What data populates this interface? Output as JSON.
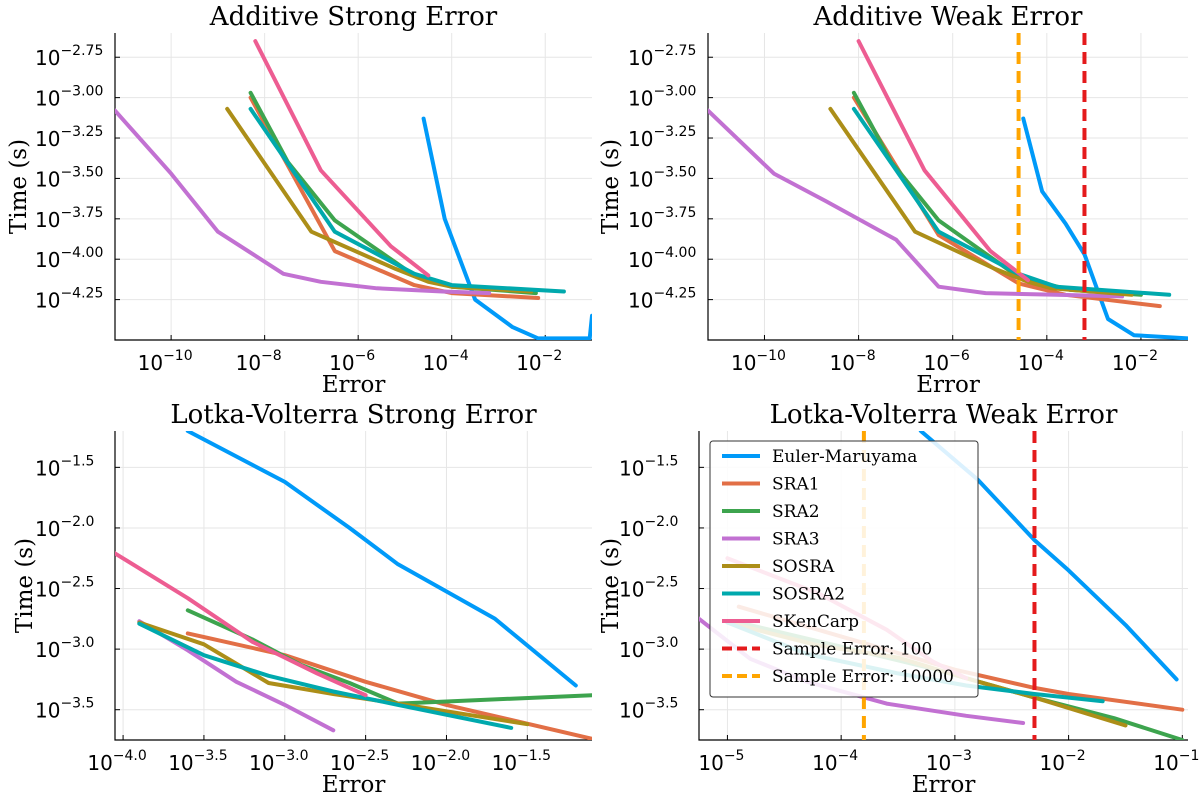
{
  "colors": {
    "Euler-Maruyama": "#009AF9",
    "SRA1": "#E26F46",
    "SRA2": "#3DA44E",
    "SRA3": "#C271D2",
    "SOSRA": "#AC8E18",
    "SOSRA2": "#00A9AD",
    "SKenCarp": "#ED5D92",
    "Sample Error: 100": "#E41A1C",
    "Sample Error: 10000": "#FFA500"
  },
  "legend": {
    "position": "top-left of bottom-right panel",
    "entries": [
      {
        "label": "Euler-Maruyama",
        "style": "solid"
      },
      {
        "label": "SRA1",
        "style": "solid"
      },
      {
        "label": "SRA2",
        "style": "solid"
      },
      {
        "label": "SRA3",
        "style": "solid"
      },
      {
        "label": "SOSRA",
        "style": "solid"
      },
      {
        "label": "SOSRA2",
        "style": "solid"
      },
      {
        "label": "SKenCarp",
        "style": "solid"
      },
      {
        "label": "Sample Error: 100",
        "style": "dashed"
      },
      {
        "label": "Sample Error: 10000",
        "style": "dashed"
      }
    ]
  },
  "chart_data": [
    {
      "type": "line",
      "title": "Additive Strong Error",
      "xlabel": "Error",
      "ylabel": "Time (s)",
      "xscale": "log10",
      "yscale": "log10",
      "xlim": [
        -11.2,
        -1
      ],
      "ylim": [
        -4.5,
        -2.6
      ],
      "xticks": [
        -10,
        -8,
        -6,
        -4,
        -2
      ],
      "xtick_labels": [
        "10",
        "10",
        "10",
        "10",
        "10"
      ],
      "xtick_exponents": [
        "−10",
        "−8",
        "−6",
        "−4",
        "−2"
      ],
      "yticks": [
        -2.75,
        -3.0,
        -3.25,
        -3.5,
        -3.75,
        -4.0,
        -4.25
      ],
      "ytick_labels": [
        "10",
        "10",
        "10",
        "10",
        "10",
        "10",
        "10"
      ],
      "ytick_exponents": [
        "−2.75",
        "−3.00",
        "−3.25",
        "−3.50",
        "−3.75",
        "−4.00",
        "−4.25"
      ],
      "series": [
        {
          "name": "Euler-Maruyama",
          "x": [
            -4.6,
            -4.15,
            -3.5,
            -2.7,
            -2.15,
            -1.05,
            -1.0
          ],
          "y": [
            -3.13,
            -3.75,
            -4.25,
            -4.42,
            -4.49,
            -4.49,
            -4.35
          ]
        },
        {
          "name": "SRA1",
          "x": [
            -8.3,
            -6.5,
            -4.8,
            -4.0,
            -2.15
          ],
          "y": [
            -3.0,
            -3.95,
            -4.16,
            -4.21,
            -4.24
          ]
        },
        {
          "name": "SRA2",
          "x": [
            -8.3,
            -7.5,
            -6.5,
            -4.8,
            -4.0,
            -2.2
          ],
          "y": [
            -2.97,
            -3.4,
            -3.76,
            -4.1,
            -4.17,
            -4.21
          ]
        },
        {
          "name": "SRA3",
          "x": [
            -11.2,
            -10.0,
            -9.0,
            -7.6,
            -6.8,
            -5.6,
            -4.2,
            -3.2
          ],
          "y": [
            -3.08,
            -3.47,
            -3.83,
            -4.09,
            -4.14,
            -4.18,
            -4.2,
            -4.21
          ]
        },
        {
          "name": "SOSRA",
          "x": [
            -8.8,
            -7.0,
            -5.2,
            -4.5,
            -4.0,
            -2.3
          ],
          "y": [
            -3.07,
            -3.83,
            -4.06,
            -4.14,
            -4.17,
            -4.2
          ]
        },
        {
          "name": "SOSRA2",
          "x": [
            -8.3,
            -6.5,
            -4.8,
            -4.0,
            -1.6
          ],
          "y": [
            -3.07,
            -3.83,
            -4.09,
            -4.16,
            -4.2
          ]
        },
        {
          "name": "SKenCarp",
          "x": [
            -8.2,
            -6.8,
            -5.3,
            -4.5
          ],
          "y": [
            -2.65,
            -3.45,
            -3.92,
            -4.1
          ]
        }
      ]
    },
    {
      "type": "line",
      "title": "Additive Weak Error",
      "xlabel": "Error",
      "ylabel": "Time (s)",
      "xscale": "log10",
      "yscale": "log10",
      "xlim": [
        -11.2,
        -1
      ],
      "ylim": [
        -4.5,
        -2.6
      ],
      "xticks": [
        -10,
        -8,
        -6,
        -4,
        -2
      ],
      "xtick_labels": [
        "10",
        "10",
        "10",
        "10",
        "10"
      ],
      "xtick_exponents": [
        "−10",
        "−8",
        "−6",
        "−4",
        "−2"
      ],
      "yticks": [
        -2.75,
        -3.0,
        -3.25,
        -3.5,
        -3.75,
        -4.0,
        -4.25
      ],
      "ytick_labels": [
        "10",
        "10",
        "10",
        "10",
        "10",
        "10",
        "10"
      ],
      "ytick_exponents": [
        "−2.75",
        "−3.00",
        "−3.25",
        "−3.50",
        "−3.75",
        "−4.00",
        "−4.25"
      ],
      "vlines": [
        {
          "name": "Sample Error: 10000",
          "x": -4.6
        },
        {
          "name": "Sample Error: 100",
          "x": -3.2
        }
      ],
      "series": [
        {
          "name": "Euler-Maruyama",
          "x": [
            -4.5,
            -4.1,
            -3.6,
            -3.2,
            -2.7,
            -2.15,
            -1.0
          ],
          "y": [
            -3.13,
            -3.58,
            -3.78,
            -3.97,
            -4.37,
            -4.47,
            -4.49
          ]
        },
        {
          "name": "SRA1",
          "x": [
            -8.1,
            -6.3,
            -4.6,
            -3.6,
            -1.6
          ],
          "y": [
            -3.0,
            -3.85,
            -4.15,
            -4.22,
            -4.29
          ]
        },
        {
          "name": "SRA2",
          "x": [
            -8.1,
            -7.3,
            -6.3,
            -4.6,
            -3.5,
            -2.0
          ],
          "y": [
            -2.97,
            -3.4,
            -3.76,
            -4.11,
            -4.19,
            -4.22
          ]
        },
        {
          "name": "SRA3",
          "x": [
            -11.2,
            -9.8,
            -8.7,
            -7.2,
            -6.3,
            -5.3,
            -3.8,
            -2.4
          ],
          "y": [
            -3.08,
            -3.47,
            -3.64,
            -3.88,
            -4.17,
            -4.21,
            -4.22,
            -4.23
          ]
        },
        {
          "name": "SOSRA",
          "x": [
            -8.6,
            -6.8,
            -5.1,
            -4.4,
            -3.9,
            -2.2
          ],
          "y": [
            -3.07,
            -3.83,
            -4.06,
            -4.14,
            -4.18,
            -4.22
          ]
        },
        {
          "name": "SOSRA2",
          "x": [
            -8.1,
            -6.3,
            -4.6,
            -3.8,
            -1.4
          ],
          "y": [
            -3.07,
            -3.83,
            -4.09,
            -4.17,
            -4.22
          ]
        },
        {
          "name": "SKenCarp",
          "x": [
            -8.0,
            -6.6,
            -5.2,
            -4.4
          ],
          "y": [
            -2.65,
            -3.45,
            -3.95,
            -4.13
          ]
        }
      ]
    },
    {
      "type": "line",
      "title": "Lotka-Volterra Strong Error",
      "xlabel": "Error",
      "ylabel": "Time (s)",
      "xscale": "log10",
      "yscale": "log10",
      "xlim": [
        -4.05,
        -1.1
      ],
      "ylim": [
        -3.75,
        -1.2
      ],
      "xticks": [
        -4.0,
        -3.5,
        -3.0,
        -2.5,
        -2.0,
        -1.5
      ],
      "xtick_labels": [
        "10",
        "10",
        "10",
        "10",
        "10",
        "10"
      ],
      "xtick_exponents": [
        "−4.0",
        "−3.5",
        "−3.0",
        "−2.5",
        "−2.0",
        "−1.5"
      ],
      "yticks": [
        -1.5,
        -2.0,
        -2.5,
        -3.0,
        -3.5
      ],
      "ytick_labels": [
        "10",
        "10",
        "10",
        "10",
        "10"
      ],
      "ytick_exponents": [
        "−1.5",
        "−2.0",
        "−2.5",
        "−3.0",
        "−3.5"
      ],
      "series": [
        {
          "name": "Euler-Maruyama",
          "x": [
            -3.6,
            -3.0,
            -2.6,
            -2.3,
            -1.7,
            -1.2
          ],
          "y": [
            -1.2,
            -1.62,
            -2.0,
            -2.3,
            -2.75,
            -3.3
          ]
        },
        {
          "name": "SRA1",
          "x": [
            -3.6,
            -3.0,
            -2.5,
            -2.0,
            -1.1
          ],
          "y": [
            -2.87,
            -3.05,
            -3.27,
            -3.46,
            -3.74
          ]
        },
        {
          "name": "SRA2",
          "x": [
            -3.6,
            -3.2,
            -2.9,
            -2.6,
            -2.3,
            -1.1
          ],
          "y": [
            -2.68,
            -2.92,
            -3.13,
            -3.28,
            -3.45,
            -3.38
          ]
        },
        {
          "name": "SRA3",
          "x": [
            -3.9,
            -3.6,
            -3.3,
            -3.0,
            -2.7
          ],
          "y": [
            -2.77,
            -3.01,
            -3.27,
            -3.46,
            -3.67
          ]
        },
        {
          "name": "SOSRA",
          "x": [
            -3.9,
            -3.5,
            -3.1,
            -2.7,
            -2.3,
            -1.5
          ],
          "y": [
            -2.78,
            -2.96,
            -3.28,
            -3.37,
            -3.45,
            -3.62
          ]
        },
        {
          "name": "SOSRA2",
          "x": [
            -3.9,
            -3.5,
            -3.1,
            -2.7,
            -2.3,
            -1.6
          ],
          "y": [
            -2.79,
            -3.05,
            -3.22,
            -3.35,
            -3.46,
            -3.65
          ]
        },
        {
          "name": "SKenCarp",
          "x": [
            -4.05,
            -3.6,
            -3.2,
            -2.8,
            -2.5
          ],
          "y": [
            -2.21,
            -2.58,
            -2.94,
            -3.2,
            -3.38
          ]
        }
      ]
    },
    {
      "type": "line",
      "title": "Lotka-Volterra Weak Error",
      "xlabel": "Error",
      "ylabel": "Time (s)",
      "xscale": "log10",
      "yscale": "log10",
      "xlim": [
        -5.25,
        -0.95
      ],
      "ylim": [
        -3.75,
        -1.2
      ],
      "xticks": [
        -5,
        -4,
        -3,
        -2,
        -1
      ],
      "xtick_labels": [
        "10",
        "10",
        "10",
        "10",
        "10"
      ],
      "xtick_exponents": [
        "−5",
        "−4",
        "−3",
        "−2",
        "−1"
      ],
      "yticks": [
        -1.5,
        -2.0,
        -2.5,
        -3.0,
        -3.5
      ],
      "ytick_labels": [
        "10",
        "10",
        "10",
        "10",
        "10"
      ],
      "ytick_exponents": [
        "−1.5",
        "−2.0",
        "−2.5",
        "−3.0",
        "−3.5"
      ],
      "vlines": [
        {
          "name": "Sample Error: 10000",
          "x": -3.8
        },
        {
          "name": "Sample Error: 100",
          "x": -2.3
        }
      ],
      "series": [
        {
          "name": "Euler-Maruyama",
          "x": [
            -3.3,
            -2.8,
            -2.3,
            -2.0,
            -1.5,
            -1.05
          ],
          "y": [
            -1.2,
            -1.6,
            -2.1,
            -2.35,
            -2.8,
            -3.25
          ]
        },
        {
          "name": "SRA1",
          "x": [
            -4.9,
            -3.8,
            -3.0,
            -2.3,
            -2.0,
            -1.0
          ],
          "y": [
            -2.65,
            -2.95,
            -3.17,
            -3.32,
            -3.37,
            -3.5
          ]
        },
        {
          "name": "SRA2",
          "x": [
            -4.9,
            -4.0,
            -3.2,
            -2.3,
            -1.6,
            -1.0
          ],
          "y": [
            -2.78,
            -2.98,
            -3.16,
            -3.4,
            -3.57,
            -3.75
          ]
        },
        {
          "name": "SRA3",
          "x": [
            -5.25,
            -4.8,
            -4.3,
            -3.6,
            -2.9,
            -2.4
          ],
          "y": [
            -2.75,
            -3.08,
            -3.27,
            -3.45,
            -3.55,
            -3.61
          ]
        },
        {
          "name": "SOSRA",
          "x": [
            -5.0,
            -4.2,
            -3.5,
            -2.9,
            -2.3,
            -1.5
          ],
          "y": [
            -2.78,
            -2.97,
            -3.07,
            -3.24,
            -3.4,
            -3.63
          ]
        },
        {
          "name": "SOSRA2",
          "x": [
            -5.0,
            -4.3,
            -3.5,
            -2.9,
            -2.3,
            -1.7
          ],
          "y": [
            -2.78,
            -3.04,
            -3.2,
            -3.3,
            -3.37,
            -3.43
          ]
        },
        {
          "name": "SKenCarp",
          "x": [
            -5.0,
            -4.2,
            -3.6,
            -3.2,
            -2.9
          ],
          "y": [
            -2.25,
            -2.54,
            -2.84,
            -3.1,
            -3.24
          ]
        }
      ]
    }
  ]
}
